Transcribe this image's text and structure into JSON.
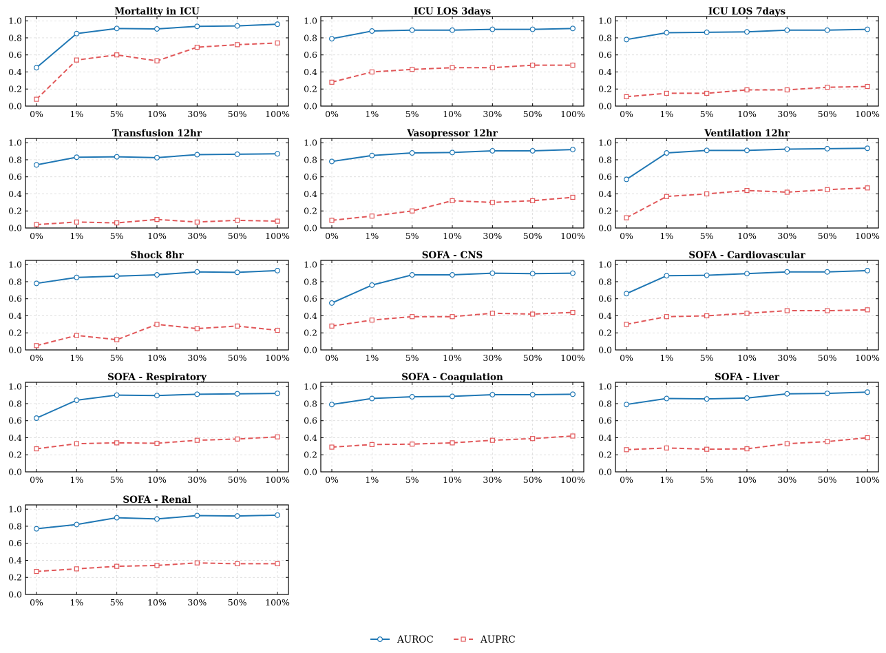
{
  "chart_data": {
    "type": "line",
    "categories": [
      "0%",
      "1%",
      "5%",
      "10%",
      "30%",
      "50%",
      "100%"
    ],
    "ylim": [
      0,
      1.05
    ],
    "yticks": [
      "0.0",
      "0.2",
      "0.4",
      "0.6",
      "0.8",
      "1.0"
    ],
    "grid": true,
    "legend": {
      "placement": "bottom-center",
      "entries": [
        {
          "name": "AUROC",
          "color": "#1f77b4",
          "marker": "circle",
          "linestyle": "solid"
        },
        {
          "name": "AUPRC",
          "color": "#e15759",
          "marker": "square",
          "linestyle": "dashed"
        }
      ]
    },
    "panels": [
      {
        "title": "Mortality in ICU",
        "series": [
          {
            "name": "AUROC",
            "values": [
              0.45,
              0.85,
              0.91,
              0.905,
              0.935,
              0.94,
              0.96
            ]
          },
          {
            "name": "AUPRC",
            "values": [
              0.08,
              0.54,
              0.6,
              0.53,
              0.69,
              0.72,
              0.74
            ]
          }
        ]
      },
      {
        "title": "ICU LOS 3days",
        "series": [
          {
            "name": "AUROC",
            "values": [
              0.79,
              0.88,
              0.89,
              0.89,
              0.9,
              0.9,
              0.91
            ]
          },
          {
            "name": "AUPRC",
            "values": [
              0.28,
              0.4,
              0.43,
              0.45,
              0.45,
              0.48,
              0.48
            ]
          }
        ]
      },
      {
        "title": "ICU LOS 7days",
        "series": [
          {
            "name": "AUROC",
            "values": [
              0.78,
              0.86,
              0.865,
              0.87,
              0.89,
              0.89,
              0.9
            ]
          },
          {
            "name": "AUPRC",
            "values": [
              0.11,
              0.15,
              0.15,
              0.19,
              0.19,
              0.22,
              0.23
            ]
          }
        ]
      },
      {
        "title": "Transfusion 12hr",
        "series": [
          {
            "name": "AUROC",
            "values": [
              0.74,
              0.83,
              0.835,
              0.825,
              0.86,
              0.865,
              0.87
            ]
          },
          {
            "name": "AUPRC",
            "values": [
              0.04,
              0.07,
              0.06,
              0.1,
              0.07,
              0.09,
              0.08
            ]
          }
        ]
      },
      {
        "title": "Vasopressor 12hr",
        "series": [
          {
            "name": "AUROC",
            "values": [
              0.78,
              0.85,
              0.88,
              0.885,
              0.905,
              0.905,
              0.92
            ]
          },
          {
            "name": "AUPRC",
            "values": [
              0.09,
              0.14,
              0.2,
              0.32,
              0.3,
              0.32,
              0.36
            ]
          }
        ]
      },
      {
        "title": "Ventilation 12hr",
        "series": [
          {
            "name": "AUROC",
            "values": [
              0.57,
              0.88,
              0.91,
              0.91,
              0.925,
              0.93,
              0.935
            ]
          },
          {
            "name": "AUPRC",
            "values": [
              0.12,
              0.37,
              0.4,
              0.44,
              0.42,
              0.45,
              0.47
            ]
          }
        ]
      },
      {
        "title": "Shock 8hr",
        "series": [
          {
            "name": "AUROC",
            "values": [
              0.78,
              0.85,
              0.865,
              0.88,
              0.915,
              0.91,
              0.93
            ]
          },
          {
            "name": "AUPRC",
            "values": [
              0.05,
              0.17,
              0.12,
              0.3,
              0.25,
              0.28,
              0.23
            ]
          }
        ]
      },
      {
        "title": "SOFA - CNS",
        "series": [
          {
            "name": "AUROC",
            "values": [
              0.55,
              0.76,
              0.88,
              0.88,
              0.9,
              0.895,
              0.9
            ]
          },
          {
            "name": "AUPRC",
            "values": [
              0.28,
              0.35,
              0.39,
              0.39,
              0.43,
              0.42,
              0.44
            ]
          }
        ]
      },
      {
        "title": "SOFA - Cardiovascular",
        "series": [
          {
            "name": "AUROC",
            "values": [
              0.66,
              0.87,
              0.875,
              0.895,
              0.915,
              0.915,
              0.93
            ]
          },
          {
            "name": "AUPRC",
            "values": [
              0.3,
              0.39,
              0.4,
              0.43,
              0.46,
              0.46,
              0.47
            ]
          }
        ]
      },
      {
        "title": "SOFA - Respiratory",
        "series": [
          {
            "name": "AUROC",
            "values": [
              0.63,
              0.84,
              0.9,
              0.895,
              0.91,
              0.915,
              0.92
            ]
          },
          {
            "name": "AUPRC",
            "values": [
              0.27,
              0.33,
              0.34,
              0.335,
              0.37,
              0.385,
              0.41
            ]
          }
        ]
      },
      {
        "title": "SOFA - Coagulation",
        "series": [
          {
            "name": "AUROC",
            "values": [
              0.79,
              0.86,
              0.88,
              0.885,
              0.905,
              0.905,
              0.91
            ]
          },
          {
            "name": "AUPRC",
            "values": [
              0.29,
              0.32,
              0.325,
              0.34,
              0.37,
              0.39,
              0.42
            ]
          }
        ]
      },
      {
        "title": "SOFA - Liver",
        "series": [
          {
            "name": "AUROC",
            "values": [
              0.79,
              0.86,
              0.855,
              0.865,
              0.915,
              0.92,
              0.935
            ]
          },
          {
            "name": "AUPRC",
            "values": [
              0.26,
              0.28,
              0.265,
              0.27,
              0.33,
              0.355,
              0.4
            ]
          }
        ]
      },
      {
        "title": "SOFA - Renal",
        "series": [
          {
            "name": "AUROC",
            "values": [
              0.77,
              0.82,
              0.9,
              0.885,
              0.925,
              0.92,
              0.93
            ]
          },
          {
            "name": "AUPRC",
            "values": [
              0.27,
              0.3,
              0.33,
              0.34,
              0.37,
              0.36,
              0.36
            ]
          }
        ]
      }
    ]
  }
}
